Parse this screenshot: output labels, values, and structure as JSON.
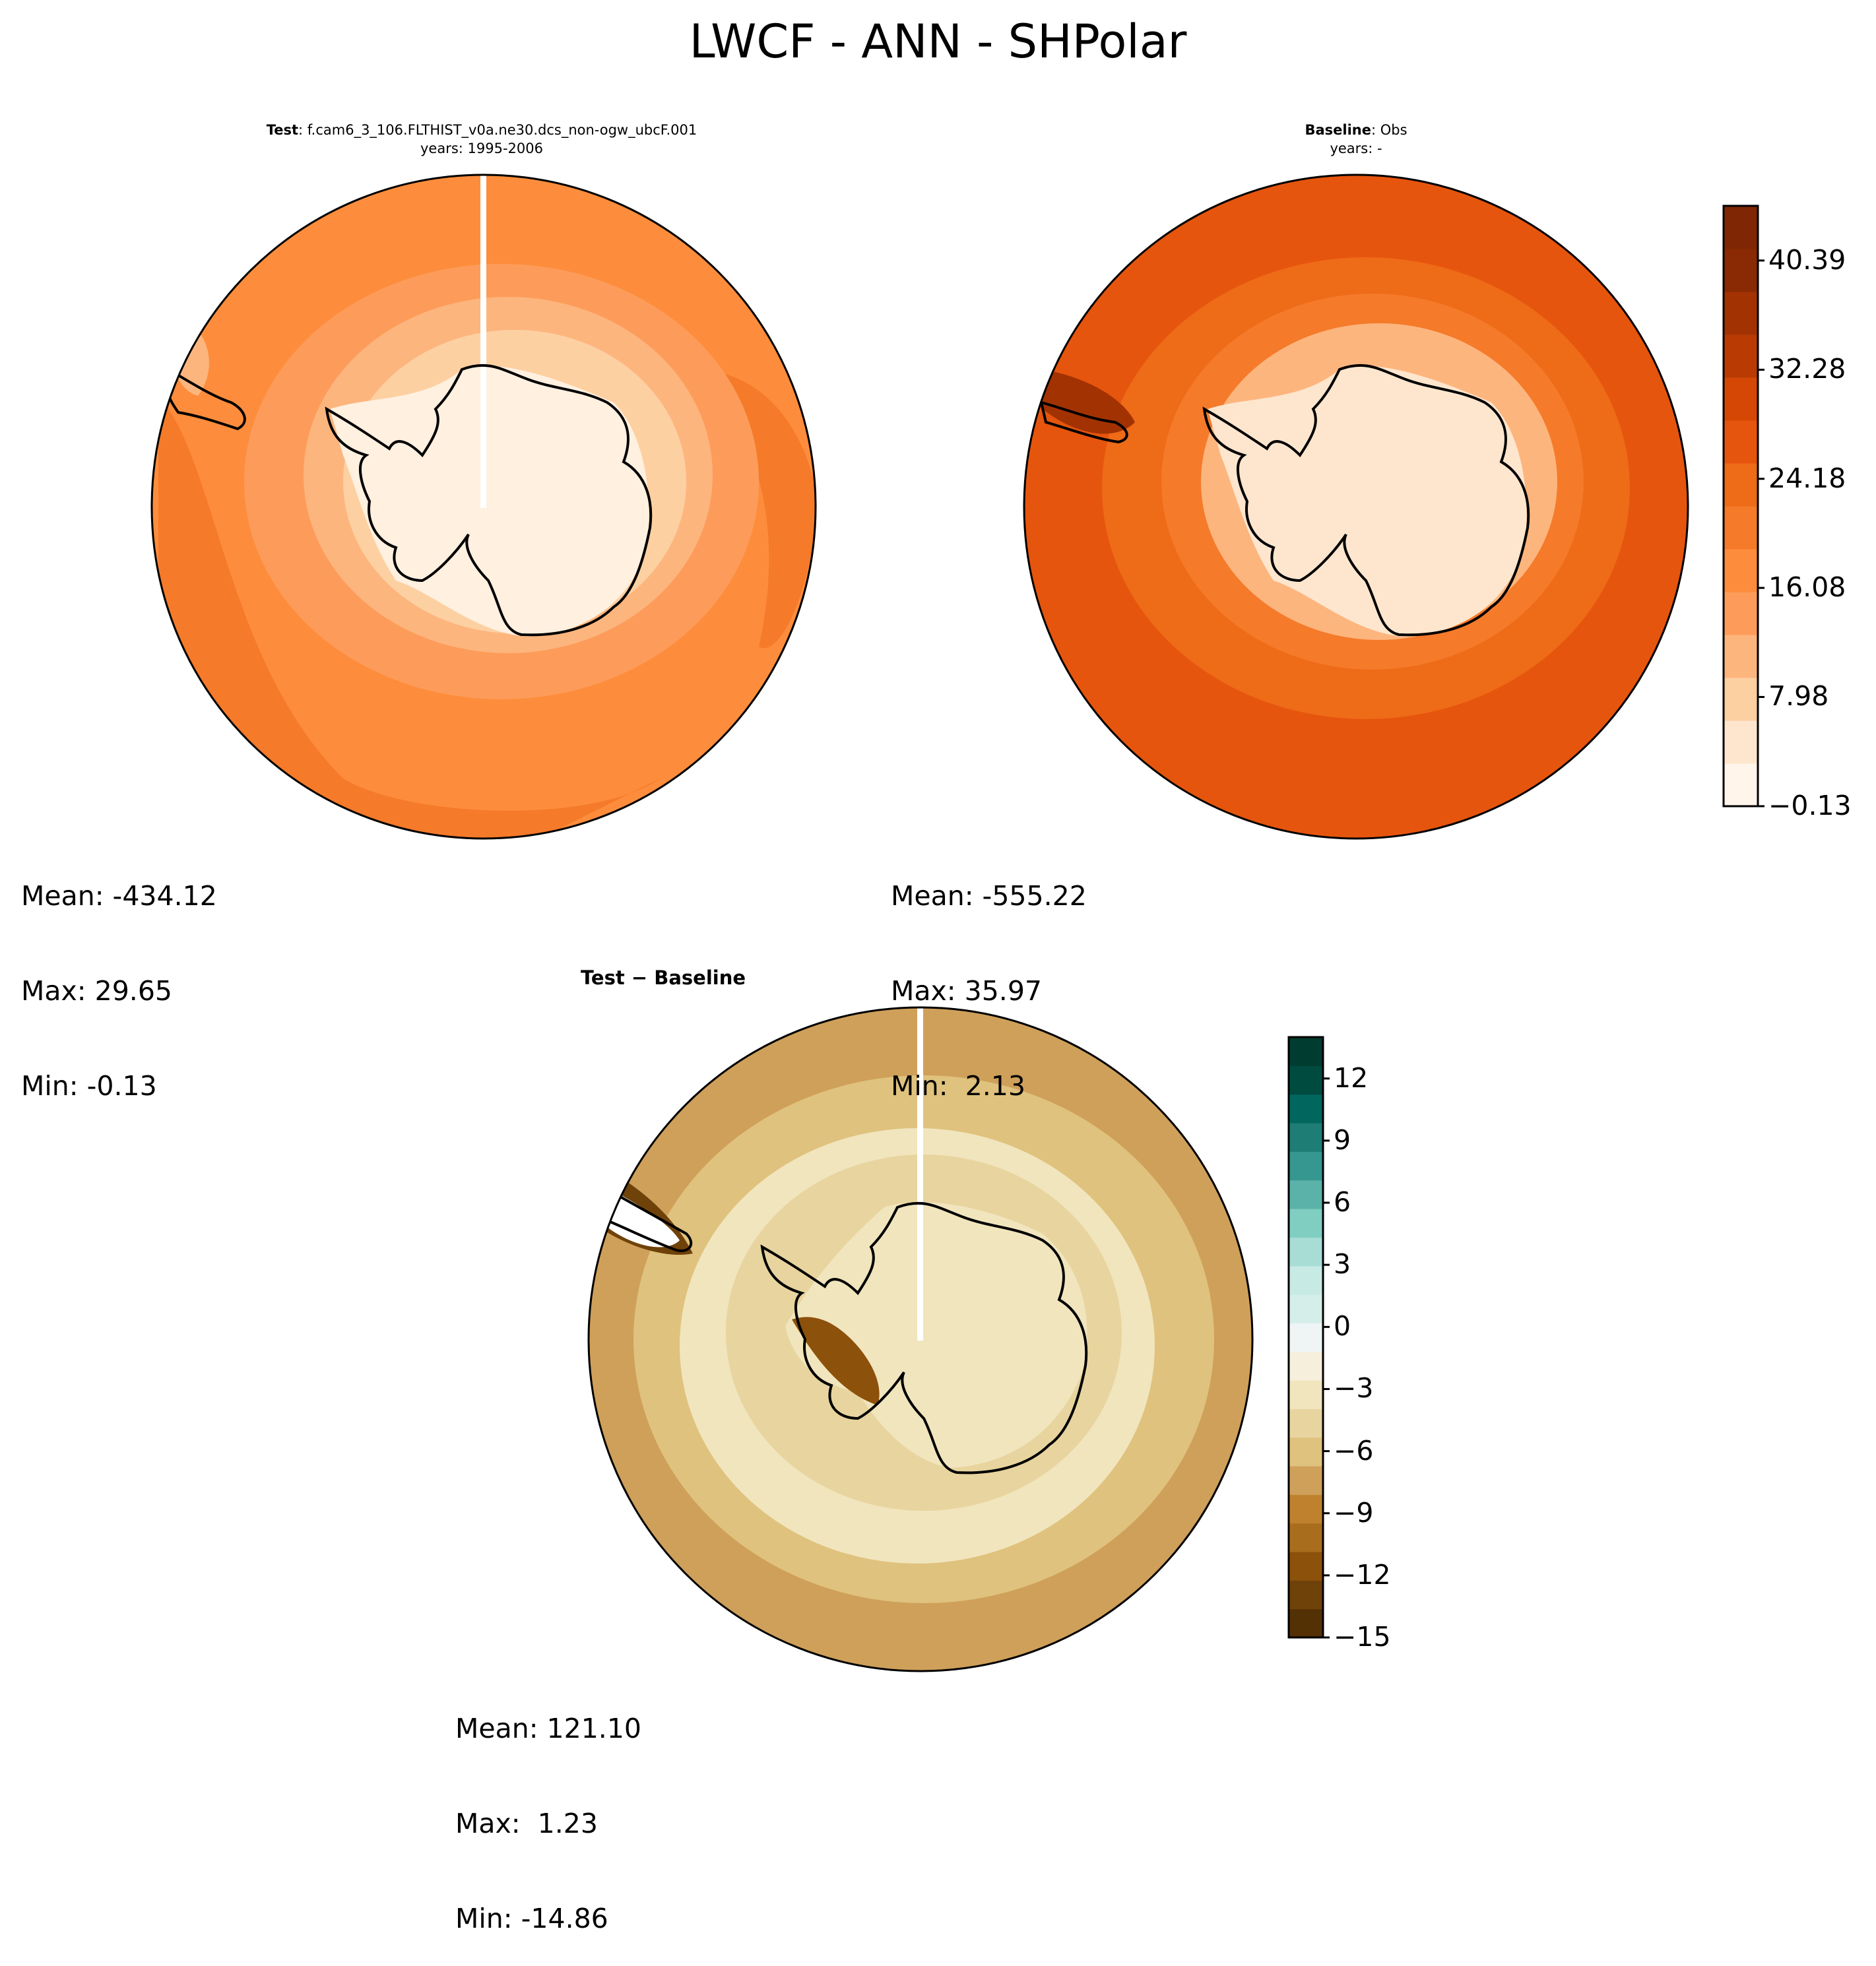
{
  "title": "LWCF - ANN - SHPolar",
  "panels": {
    "test": {
      "title_bold": "Test",
      "title_rest": ": f.cam6_3_106.FLTHIST_v0a.ne30.dcs_non-ogw_ubcF.001",
      "subtitle": "years: 1995-2006",
      "stats": {
        "mean": "Mean: -434.12",
        "max": "Max: 29.65",
        "min": "Min: -0.13"
      }
    },
    "baseline": {
      "title_bold": "Baseline",
      "title_rest": ": Obs",
      "subtitle": "years: -",
      "stats": {
        "mean": "Mean: -555.22",
        "max": "Max: 35.97",
        "min": "Min:  2.13"
      }
    },
    "diff": {
      "title": "Test − Baseline",
      "stats": {
        "mean": "Mean: 121.10",
        "max": "Max:  1.23",
        "min": "Min: -14.86"
      }
    }
  },
  "colorbars": {
    "top": {
      "ticks": [
        "−0.13",
        "7.98",
        "16.08",
        "24.18",
        "32.28",
        "40.39"
      ],
      "range": [
        -0.13,
        44.45
      ],
      "colors": [
        "#fff5eb",
        "#fee6ce",
        "#fdd0a2",
        "#fdb57e",
        "#fd9c5a",
        "#fd8d3c",
        "#f57a2a",
        "#ee6b18",
        "#e6550d",
        "#d54705",
        "#b93b03",
        "#a33203",
        "#8a2a04",
        "#7f2704"
      ]
    },
    "bottom": {
      "ticks": [
        "−15",
        "−12",
        "−9",
        "−6",
        "−3",
        "0",
        "3",
        "6",
        "9",
        "12"
      ],
      "range": [
        -15,
        14
      ],
      "colors": [
        "#543005",
        "#6f420a",
        "#8c510a",
        "#a86e1d",
        "#bf812d",
        "#cfa05a",
        "#dfc27d",
        "#e8d49e",
        "#f1e5be",
        "#f6efdc",
        "#eef5f4",
        "#d6eeea",
        "#c7eae5",
        "#a7ddd4",
        "#80cdc1",
        "#5ab2a8",
        "#35978f",
        "#1e7d75",
        "#01665e",
        "#004b40",
        "#003c30"
      ]
    }
  },
  "chart_data": [
    {
      "type": "heatmap",
      "projection": "south-polar-stereographic",
      "title": "Test: f.cam6_3_106.FLTHIST_v0a.ne30.dcs_non-ogw_ubcF.001",
      "subtitle": "years: 1995-2006",
      "colorbar_ticks": [
        -0.13,
        7.98,
        16.08,
        24.18,
        32.28,
        40.39
      ],
      "mean": -434.12,
      "max": 29.65,
      "min": -0.13
    },
    {
      "type": "heatmap",
      "projection": "south-polar-stereographic",
      "title": "Baseline: Obs",
      "subtitle": "years: -",
      "colorbar_ticks": [
        -0.13,
        7.98,
        16.08,
        24.18,
        32.28,
        40.39
      ],
      "mean": -555.22,
      "max": 35.97,
      "min": 2.13
    },
    {
      "type": "heatmap",
      "projection": "south-polar-stereographic",
      "title": "Test − Baseline",
      "colorbar_ticks": [
        -15,
        -12,
        -9,
        -6,
        -3,
        0,
        3,
        6,
        9,
        12
      ],
      "mean": 121.1,
      "max": 1.23,
      "min": -14.86
    }
  ]
}
